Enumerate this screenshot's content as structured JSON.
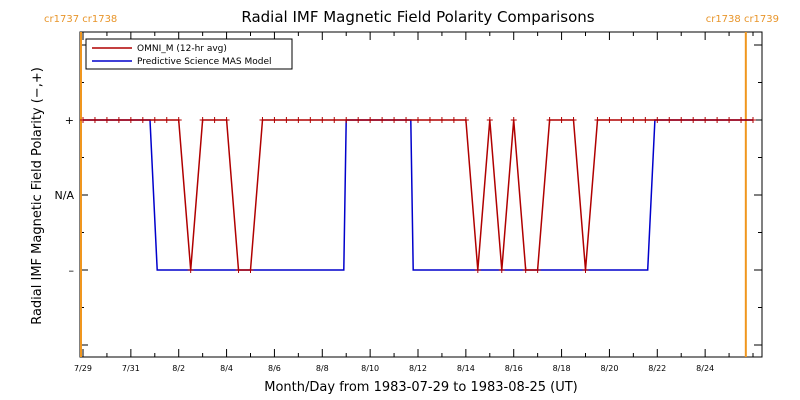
{
  "chart_data": {
    "type": "line",
    "title": "Radial IMF Magnetic Field Polarity Comparisons",
    "xlabel": "Month/Day from 1983-07-29 to 1983-08-25 (UT)",
    "ylabel": "Radial IMF Magnetic Field Polarity (−,+)",
    "x_range_days": [
      0,
      28
    ],
    "x_tick_labels": [
      {
        "day": 0,
        "label": "7/29"
      },
      {
        "day": 2,
        "label": "7/31"
      },
      {
        "day": 4,
        "label": "8/2"
      },
      {
        "day": 6,
        "label": "8/4"
      },
      {
        "day": 8,
        "label": "8/6"
      },
      {
        "day": 10,
        "label": "8/8"
      },
      {
        "day": 12,
        "label": "8/10"
      },
      {
        "day": 14,
        "label": "8/12"
      },
      {
        "day": 16,
        "label": "8/14"
      },
      {
        "day": 18,
        "label": "8/16"
      },
      {
        "day": 20,
        "label": "8/18"
      },
      {
        "day": 22,
        "label": "8/20"
      },
      {
        "day": 24,
        "label": "8/22"
      },
      {
        "day": 26,
        "label": "8/24"
      }
    ],
    "y_range": [
      -2,
      2
    ],
    "y_tick_labels": [
      {
        "value": 1,
        "label": "+"
      },
      {
        "value": 0,
        "label": "N/A"
      },
      {
        "value": -1,
        "label": "–"
      }
    ],
    "carrington_markers": [
      {
        "day": 0,
        "label": "cr1737 cr1738",
        "side": "left"
      },
      {
        "day": 27.7,
        "label": "cr1738 cr1739",
        "side": "right"
      }
    ],
    "legend_position": "top-left",
    "series": [
      {
        "name": "OMNI_M (12-hr avg)",
        "color": "#b00000",
        "markers": true,
        "points": [
          [
            0.0,
            1
          ],
          [
            0.5,
            1
          ],
          [
            1.0,
            1
          ],
          [
            1.5,
            1
          ],
          [
            2.0,
            1
          ],
          [
            2.5,
            1
          ],
          [
            3.0,
            1
          ],
          [
            3.5,
            1
          ],
          [
            4.0,
            1
          ],
          [
            4.5,
            -1
          ],
          [
            5.0,
            1
          ],
          [
            5.5,
            1
          ],
          [
            6.0,
            1
          ],
          [
            6.5,
            -1
          ],
          [
            7.0,
            -1
          ],
          [
            7.5,
            1
          ],
          [
            8.0,
            1
          ],
          [
            8.5,
            1
          ],
          [
            9.0,
            1
          ],
          [
            9.5,
            1
          ],
          [
            10.0,
            1
          ],
          [
            10.5,
            1
          ],
          [
            11.0,
            1
          ],
          [
            11.5,
            1
          ],
          [
            12.0,
            1
          ],
          [
            12.5,
            1
          ],
          [
            13.0,
            1
          ],
          [
            13.5,
            1
          ],
          [
            14.0,
            1
          ],
          [
            14.5,
            1
          ],
          [
            15.0,
            1
          ],
          [
            15.5,
            1
          ],
          [
            16.0,
            1
          ],
          [
            16.5,
            -1
          ],
          [
            17.0,
            1
          ],
          [
            17.5,
            -1
          ],
          [
            18.0,
            1
          ],
          [
            18.5,
            -1
          ],
          [
            19.0,
            -1
          ],
          [
            19.5,
            1
          ],
          [
            20.0,
            1
          ],
          [
            20.5,
            1
          ],
          [
            21.0,
            -1
          ],
          [
            21.5,
            1
          ],
          [
            22.0,
            1
          ],
          [
            22.5,
            1
          ],
          [
            23.0,
            1
          ],
          [
            23.5,
            1
          ],
          [
            24.0,
            1
          ],
          [
            24.5,
            1
          ],
          [
            25.0,
            1
          ],
          [
            25.5,
            1
          ],
          [
            26.0,
            1
          ],
          [
            26.5,
            1
          ],
          [
            27.0,
            1
          ],
          [
            27.5,
            1
          ],
          [
            28.0,
            1
          ]
        ]
      },
      {
        "name": "Predictive Science MAS Model",
        "color": "#0000cc",
        "markers": false,
        "points": [
          [
            0.0,
            1
          ],
          [
            2.8,
            1
          ],
          [
            3.1,
            -1
          ],
          [
            10.9,
            -1
          ],
          [
            11.0,
            1
          ],
          [
            13.7,
            1
          ],
          [
            13.8,
            -1
          ],
          [
            23.6,
            -1
          ],
          [
            23.9,
            1
          ],
          [
            28.0,
            1
          ]
        ]
      }
    ]
  }
}
